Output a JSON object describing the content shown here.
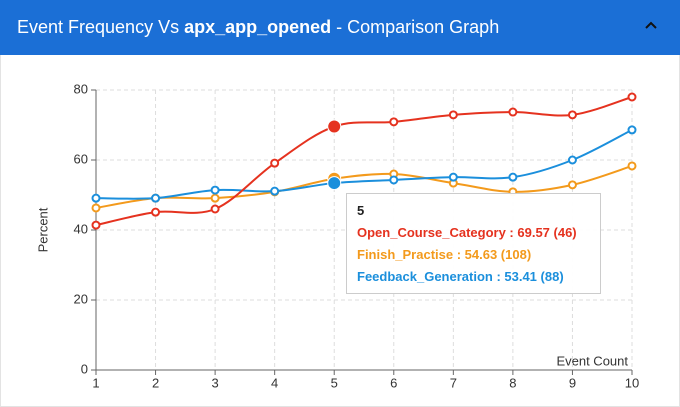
{
  "header": {
    "title": [
      "Event Frequency Vs",
      "apx_app_opened",
      "- Comparison Graph"
    ]
  },
  "chart_data": {
    "type": "line",
    "ylabel": "Percent",
    "xlabel": "Event Count",
    "x": [
      1,
      2,
      3,
      4,
      5,
      6,
      7,
      8,
      9,
      10
    ],
    "xlim": [
      1,
      10
    ],
    "xticks": [
      1,
      2,
      3,
      4,
      5,
      6,
      7,
      8,
      9,
      10
    ],
    "ylim": [
      0,
      80
    ],
    "yticks": [
      0,
      20,
      40,
      60,
      80
    ],
    "grid": true,
    "series": [
      {
        "name": "Open_Course_Category",
        "color": "#e5321f",
        "values": [
          41.4,
          45.1,
          46,
          59.1,
          69.57,
          70.9,
          72.9,
          73.7,
          72.9,
          78
        ]
      },
      {
        "name": "Finish_Practise",
        "color": "#f39a1c",
        "values": [
          46.3,
          49.1,
          49.1,
          50.9,
          54.63,
          56,
          53.4,
          50.9,
          52.9,
          58.3
        ]
      },
      {
        "name": "Feedback_Generation",
        "color": "#1b8fdc",
        "values": [
          49.1,
          49.1,
          51.4,
          51.1,
          53.41,
          54.3,
          55.1,
          55.1,
          60,
          68.6
        ]
      }
    ],
    "tooltip": {
      "title": "5",
      "lines": [
        "Open_Course_Category : 69.57 (46)",
        "Finish_Practise : 54.63 (108)",
        "Feedback_Generation : 53.41 (88)"
      ]
    }
  }
}
